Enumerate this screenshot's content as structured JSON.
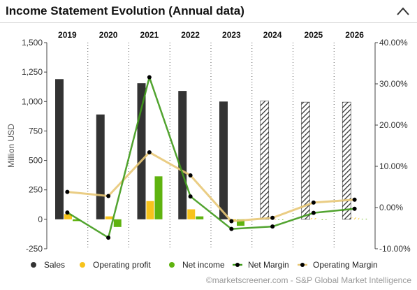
{
  "header": {
    "title": "Income Statement Evolution (Annual data)",
    "collapse_icon": "chevron-up-icon"
  },
  "credit": "©marketscreener.com - S&P Global Market Intelligence",
  "colors": {
    "sales": "#333333",
    "operating_profit": "#f7c31c",
    "net_income": "#5fb30f",
    "net_margin": "#3f9a1a",
    "operating_margin": "#e8c877",
    "forecast_hatch": "#333333"
  },
  "chart_data": {
    "type": "bar",
    "categories": [
      "2019",
      "2020",
      "2021",
      "2022",
      "2023",
      "2024",
      "2025",
      "2026"
    ],
    "forecast_from": "2024",
    "ylabel": "Million USD",
    "ylim": [
      -250,
      1500
    ],
    "yticks": [
      -250,
      0,
      250,
      500,
      750,
      1000,
      1250,
      1500
    ],
    "ytick_labels": [
      "-250",
      "0",
      "250",
      "500",
      "750",
      "1,000",
      "1,250",
      "1,500"
    ],
    "y2lim": [
      -10,
      40
    ],
    "y2ticks": [
      -10,
      0,
      10,
      20,
      30,
      40
    ],
    "y2tick_labels": [
      "-10.00%",
      "0.00%",
      "10.00%",
      "20.00%",
      "30.00%",
      "40.00%"
    ],
    "series": [
      {
        "name": "Sales",
        "kind": "bar",
        "axis": "left",
        "values": [
          1190,
          890,
          1155,
          1090,
          1000,
          1005,
          995,
          995
        ]
      },
      {
        "name": "Operating profit",
        "kind": "bar",
        "axis": "left",
        "values": [
          45,
          25,
          155,
          85,
          -10,
          5,
          10,
          15
        ]
      },
      {
        "name": "Net income",
        "kind": "bar",
        "axis": "left",
        "values": [
          -15,
          -65,
          365,
          25,
          -55,
          -5,
          -5,
          5
        ]
      },
      {
        "name": "Net Margin",
        "kind": "line",
        "axis": "right",
        "values": [
          -1.2,
          -7.3,
          31.6,
          2.7,
          -5.2,
          -4.6,
          -1.3,
          -0.3
        ]
      },
      {
        "name": "Operating Margin",
        "kind": "line",
        "axis": "right",
        "values": [
          3.8,
          2.8,
          13.4,
          7.8,
          -3.3,
          -2.5,
          1.2,
          1.9
        ]
      }
    ],
    "legend_position": "bottom",
    "grid": false
  }
}
